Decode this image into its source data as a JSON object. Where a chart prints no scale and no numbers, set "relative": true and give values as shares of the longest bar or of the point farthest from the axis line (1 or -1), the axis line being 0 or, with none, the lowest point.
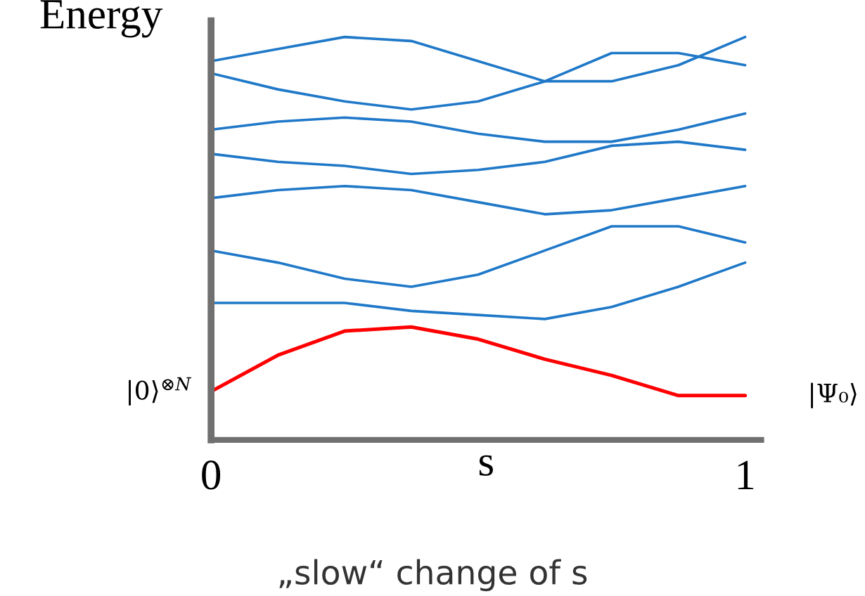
{
  "chart_data": {
    "type": "line",
    "relative": true,
    "ylabel": "Energy",
    "xlabel": "s",
    "x": [
      0,
      0.125,
      0.25,
      0.375,
      0.5,
      0.625,
      0.75,
      0.875,
      1
    ],
    "xlim": [
      0,
      1.03
    ],
    "xticks": [
      0,
      1
    ],
    "series": [
      {
        "color": "#1f78c8",
        "values": [
          0.94,
          0.97,
          1.0,
          0.99,
          0.94,
          0.89,
          0.89,
          0.93,
          1.0
        ]
      },
      {
        "color": "#1f78c8",
        "values": [
          0.91,
          0.87,
          0.84,
          0.82,
          0.84,
          0.89,
          0.96,
          0.96,
          0.93
        ]
      },
      {
        "color": "#1f78c8",
        "values": [
          0.77,
          0.79,
          0.8,
          0.79,
          0.76,
          0.74,
          0.74,
          0.77,
          0.81
        ]
      },
      {
        "color": "#1f78c8",
        "values": [
          0.71,
          0.69,
          0.68,
          0.66,
          0.67,
          0.69,
          0.73,
          0.74,
          0.72
        ]
      },
      {
        "color": "#1f78c8",
        "values": [
          0.6,
          0.62,
          0.63,
          0.62,
          0.59,
          0.56,
          0.57,
          0.6,
          0.63
        ]
      },
      {
        "color": "#1f78c8",
        "values": [
          0.47,
          0.44,
          0.4,
          0.38,
          0.41,
          0.47,
          0.53,
          0.53,
          0.49
        ]
      },
      {
        "color": "#1f78c8",
        "values": [
          0.34,
          0.34,
          0.34,
          0.32,
          0.31,
          0.3,
          0.33,
          0.38,
          0.44
        ]
      },
      {
        "color": "#ff0000",
        "values": [
          0.12,
          0.21,
          0.27,
          0.28,
          0.25,
          0.2,
          0.16,
          0.11,
          0.11
        ]
      }
    ],
    "annotations": [
      {
        "text": "|0⟩$^{⊗N}$",
        "x": 0,
        "y": 0.12
      },
      {
        "text": "|Ψ₀⟩",
        "x": 1,
        "y": 0.11
      },
      "„slow“ change of s"
    ],
    "grid": false,
    "legend": false,
    "marker": "none",
    "line_style": "solid"
  }
}
